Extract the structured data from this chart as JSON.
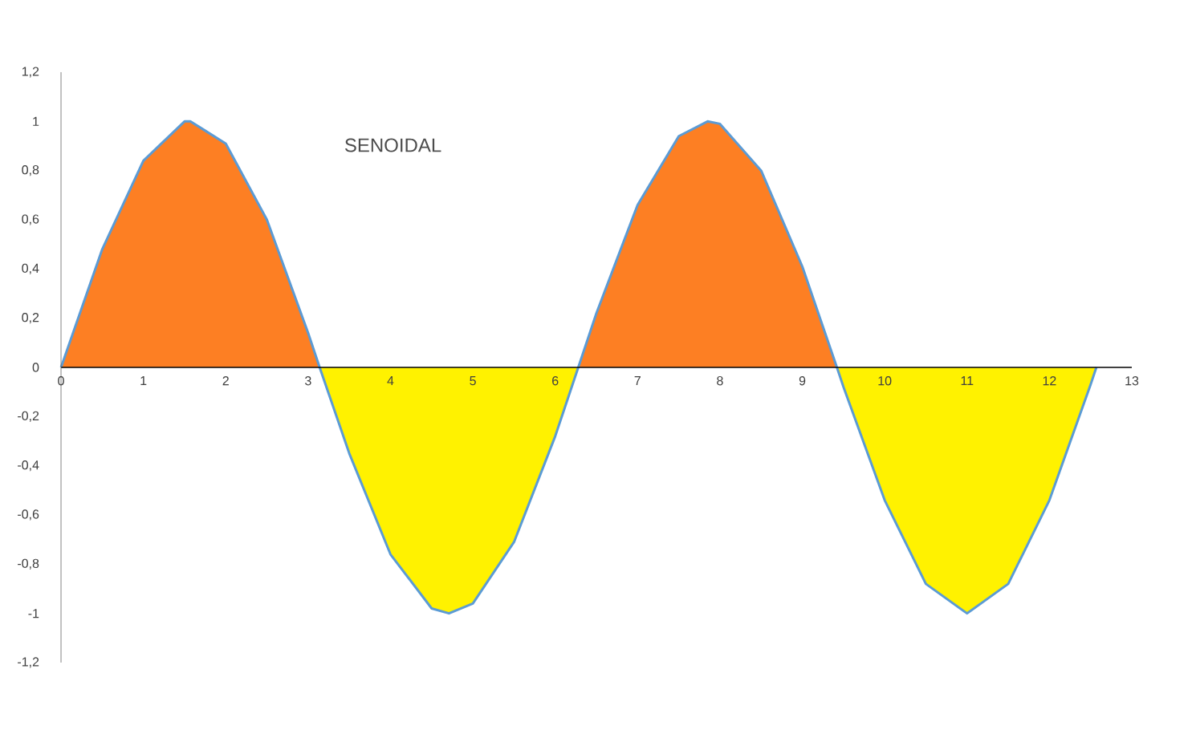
{
  "chart_data": {
    "type": "area",
    "title": "SENOIDAL",
    "x": [
      0,
      0.5,
      1,
      1.5,
      1.57,
      2,
      2.5,
      3,
      3.14,
      3.5,
      4,
      4.5,
      4.71,
      5,
      5.5,
      6,
      6.28,
      6.5,
      7,
      7.5,
      7.85,
      8,
      8.5,
      9,
      9.42,
      9.5,
      10,
      10.5,
      11,
      11.5,
      12,
      12.5,
      12.57
    ],
    "series": [
      {
        "color": "#fd7f23",
        "values": [
          0,
          0.48,
          0.84,
          1.0,
          1.0,
          0.91,
          0.6,
          0.14,
          0,
          0,
          0,
          0,
          0,
          0,
          0,
          0,
          0,
          0.22,
          0.66,
          0.94,
          1.0,
          0.99,
          0.8,
          0.41,
          0,
          0,
          0,
          0,
          0,
          0,
          0,
          0,
          0
        ]
      },
      {
        "color": "#fff200",
        "values": [
          0,
          0,
          0,
          0,
          0,
          0,
          0,
          0,
          0,
          -0.35,
          -0.76,
          -0.98,
          -1.0,
          -0.96,
          -0.71,
          -0.28,
          0,
          0,
          0,
          0,
          0,
          0,
          0,
          0,
          0,
          -0.08,
          -0.54,
          -0.88,
          -1.0,
          -0.88,
          -0.54,
          -0.07,
          0
        ]
      },
      {
        "type": "line",
        "color": "#5b9bd5",
        "values": [
          0,
          0.48,
          0.84,
          1.0,
          1.0,
          0.91,
          0.6,
          0.14,
          0,
          -0.35,
          -0.76,
          -0.98,
          -1.0,
          -0.96,
          -0.71,
          -0.28,
          0,
          0.22,
          0.66,
          0.94,
          1.0,
          0.99,
          0.8,
          0.41,
          0,
          -0.08,
          -0.54,
          -0.88,
          -1.0,
          -0.88,
          -0.54,
          -0.07,
          0
        ]
      }
    ],
    "xlim": [
      0,
      13
    ],
    "xticks": [
      0,
      1,
      2,
      3,
      4,
      5,
      6,
      7,
      8,
      9,
      10,
      11,
      12,
      13
    ],
    "ylim": [
      -1.2,
      1.2
    ],
    "yticks": [
      {
        "value": -1.2,
        "label": "-1,2"
      },
      {
        "value": -1,
        "label": "-1"
      },
      {
        "value": -0.8,
        "label": "-0,8"
      },
      {
        "value": -0.6,
        "label": "-0,6"
      },
      {
        "value": -0.4,
        "label": "-0,4"
      },
      {
        "value": -0.2,
        "label": "-0,2"
      },
      {
        "value": 0,
        "label": "0"
      },
      {
        "value": 0.2,
        "label": "0,2"
      },
      {
        "value": 0.4,
        "label": "0,4"
      },
      {
        "value": 0.6,
        "label": "0,6"
      },
      {
        "value": 0.8,
        "label": "0,8"
      },
      {
        "value": 1,
        "label": "1"
      },
      {
        "value": 1.2,
        "label": "1,2"
      }
    ]
  }
}
